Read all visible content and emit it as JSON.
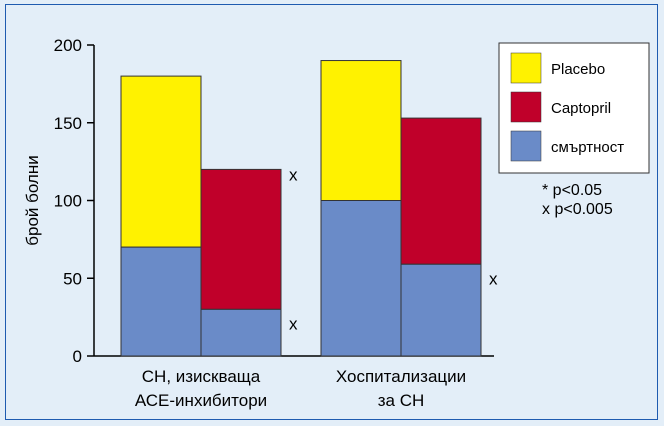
{
  "chart_data": {
    "type": "bar",
    "stacked": true,
    "ylabel": "брой болни",
    "ylim": [
      0,
      200
    ],
    "yticks": [
      "0",
      "50",
      "100",
      "150",
      "200"
    ],
    "groups": [
      {
        "label_lines": [
          "СН, изискваща",
          "АСЕ-инхибитори"
        ],
        "bars": [
          {
            "series": "Placebo",
            "total": 180,
            "mortality": 70,
            "mark": ""
          },
          {
            "series": "Captopril",
            "total": 120,
            "mortality": 30,
            "mark": "x",
            "mortality_mark": "x"
          }
        ]
      },
      {
        "label_lines": [
          "Хоспитализации",
          "за СН"
        ],
        "bars": [
          {
            "series": "Placebo",
            "total": 190,
            "mortality": 100,
            "mark": ""
          },
          {
            "series": "Captopril",
            "total": 153,
            "mortality": 59,
            "mark": "",
            "mortality_mark": "x"
          }
        ]
      }
    ],
    "legend": [
      {
        "name": "Placebo",
        "color": "#FFF200"
      },
      {
        "name": "Captopril",
        "color": "#C0002A"
      },
      {
        "name": "смъртност",
        "color": "#6A8BC8"
      }
    ],
    "legend_position": "top-right",
    "notes": [
      "* p<0.05",
      "x p<0.005"
    ]
  }
}
